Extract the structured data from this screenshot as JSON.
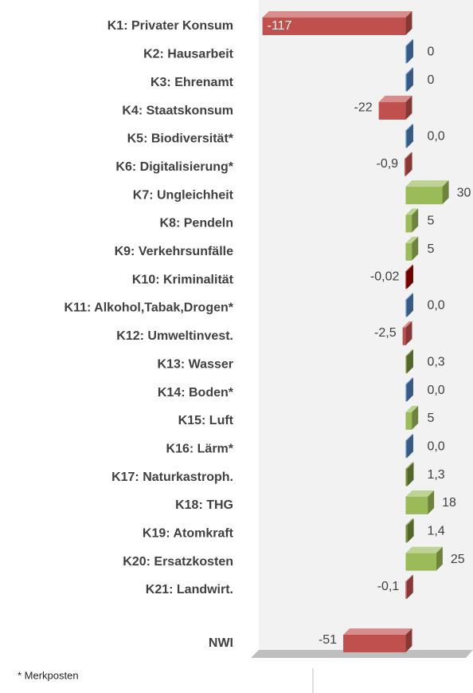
{
  "chart_data": {
    "type": "bar",
    "orientation": "horizontal",
    "categories": [
      "K1: Privater Konsum",
      "K2: Hausarbeit",
      "K3: Ehrenamt",
      "K4: Staatskonsum",
      "K5: Biodiversität*",
      "K6: Digitalisierung*",
      "K7: Ungleichheit",
      "K8: Pendeln",
      "K9: Verkehrsunfälle",
      "K10: Kriminalität",
      "K11: Alkohol,Tabak,Drogen*",
      "K12: Umweltinvest.",
      "K13: Wasser",
      "K14: Boden*",
      "K15: Luft",
      "K16: Lärm*",
      "K17: Naturkastroph.",
      "K18: THG",
      "K19: Atomkraft",
      "K20: Ersatzkosten",
      "K21: Landwirt."
    ],
    "values": [
      -117,
      0,
      0,
      -22,
      0,
      -0.9,
      30,
      5,
      5,
      -0.02,
      0,
      -2.5,
      0.3,
      0,
      5,
      0,
      1.3,
      18,
      1.4,
      25,
      -0.1
    ],
    "value_labels": [
      "-117",
      "0",
      "0",
      "-22",
      "0,0",
      "-0,9",
      "30",
      "5",
      "5",
      "-0,02",
      "0,0",
      "-2,5",
      "0,3",
      "0,0",
      "5",
      "0,0",
      "1,3",
      "18",
      "1,4",
      "25",
      "-0,1"
    ],
    "colors": [
      "#c0504d",
      "#4f81bd",
      "#4f81bd",
      "#c0504d",
      "#4f81bd",
      "#c0504d",
      "#9bbb59",
      "#9bbb59",
      "#9bbb59",
      "#990000",
      "#4f81bd",
      "#c0504d",
      "#77933c",
      "#4f81bd",
      "#9bbb59",
      "#4f81bd",
      "#77933c",
      "#9bbb59",
      "#77933c",
      "#9bbb59",
      "#c0504d"
    ],
    "total": {
      "label": "NWI",
      "value": -51,
      "value_label": "-51",
      "color": "#c0504d"
    },
    "xlim": [
      -120,
      55
    ],
    "footnote": "* Merkposten"
  }
}
